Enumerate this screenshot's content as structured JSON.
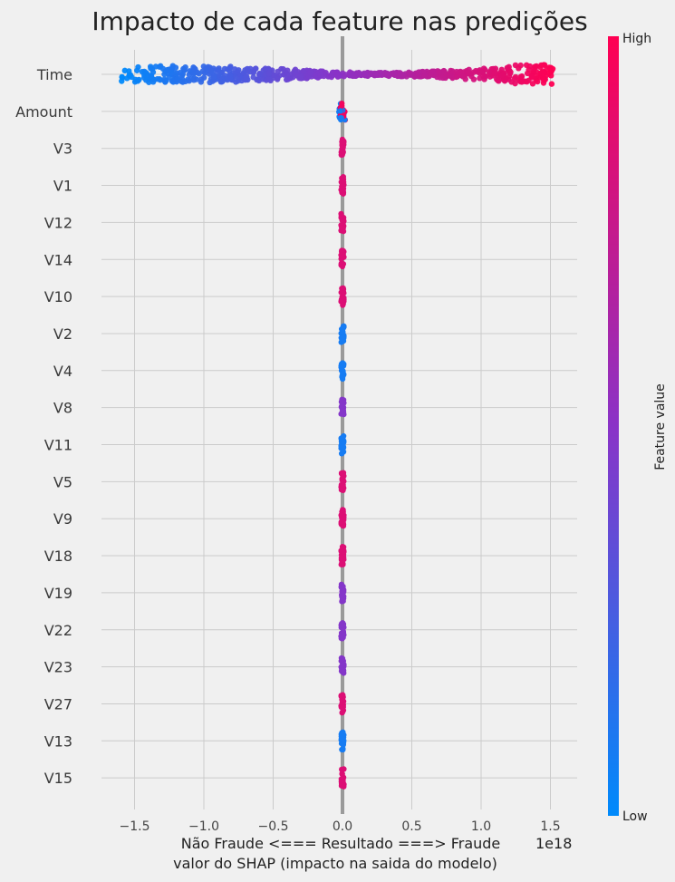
{
  "chart_data": {
    "type": "scatter",
    "title": "Impacto de cada feature nas predições",
    "xlabel_line1": "Não Fraude <===   Resultado     ===> Fraude",
    "xlabel_line2": "valor do SHAP (impacto na saida do modelo)",
    "x_offset_label": "1e18",
    "x_ticks": [
      -1.5,
      -1.0,
      -0.5,
      0.0,
      0.5,
      1.0,
      1.5
    ],
    "x_tick_labels": [
      "−1.5",
      "−1.0",
      "−0.5",
      "0.0",
      "0.5",
      "1.0",
      "1.5"
    ],
    "xlim": [
      -1.75,
      1.7
    ],
    "grid": true,
    "colorbar": {
      "title": "Feature value",
      "high_label": "High",
      "low_label": "Low",
      "low_color": "#008afb",
      "mid_color": "#8a33c7",
      "high_color": "#ff0052"
    },
    "features": [
      {
        "name": "Time",
        "x_min": -1.6,
        "x_max": 1.52,
        "trend": "low-to-high"
      },
      {
        "name": "Amount",
        "x_min": -0.03,
        "x_max": 0.02,
        "trend": "mixed"
      },
      {
        "name": "V3",
        "x_min": -0.01,
        "x_max": 0.01,
        "trend": "high"
      },
      {
        "name": "V1",
        "x_min": -0.01,
        "x_max": 0.01,
        "trend": "high"
      },
      {
        "name": "V12",
        "x_min": -0.01,
        "x_max": 0.01,
        "trend": "high"
      },
      {
        "name": "V14",
        "x_min": -0.01,
        "x_max": 0.01,
        "trend": "high"
      },
      {
        "name": "V10",
        "x_min": -0.01,
        "x_max": 0.01,
        "trend": "high"
      },
      {
        "name": "V2",
        "x_min": -0.01,
        "x_max": 0.01,
        "trend": "low"
      },
      {
        "name": "V4",
        "x_min": -0.01,
        "x_max": 0.01,
        "trend": "low"
      },
      {
        "name": "V8",
        "x_min": -0.01,
        "x_max": 0.01,
        "trend": "mid"
      },
      {
        "name": "V11",
        "x_min": -0.01,
        "x_max": 0.01,
        "trend": "low"
      },
      {
        "name": "V5",
        "x_min": -0.01,
        "x_max": 0.01,
        "trend": "high"
      },
      {
        "name": "V9",
        "x_min": -0.01,
        "x_max": 0.01,
        "trend": "high"
      },
      {
        "name": "V18",
        "x_min": -0.01,
        "x_max": 0.01,
        "trend": "high"
      },
      {
        "name": "V19",
        "x_min": -0.01,
        "x_max": 0.01,
        "trend": "mid"
      },
      {
        "name": "V22",
        "x_min": -0.01,
        "x_max": 0.01,
        "trend": "mid"
      },
      {
        "name": "V23",
        "x_min": -0.01,
        "x_max": 0.01,
        "trend": "mid"
      },
      {
        "name": "V27",
        "x_min": -0.01,
        "x_max": 0.01,
        "trend": "high"
      },
      {
        "name": "V13",
        "x_min": -0.01,
        "x_max": 0.01,
        "trend": "low"
      },
      {
        "name": "V15",
        "x_min": -0.01,
        "x_max": 0.01,
        "trend": "high"
      }
    ]
  }
}
